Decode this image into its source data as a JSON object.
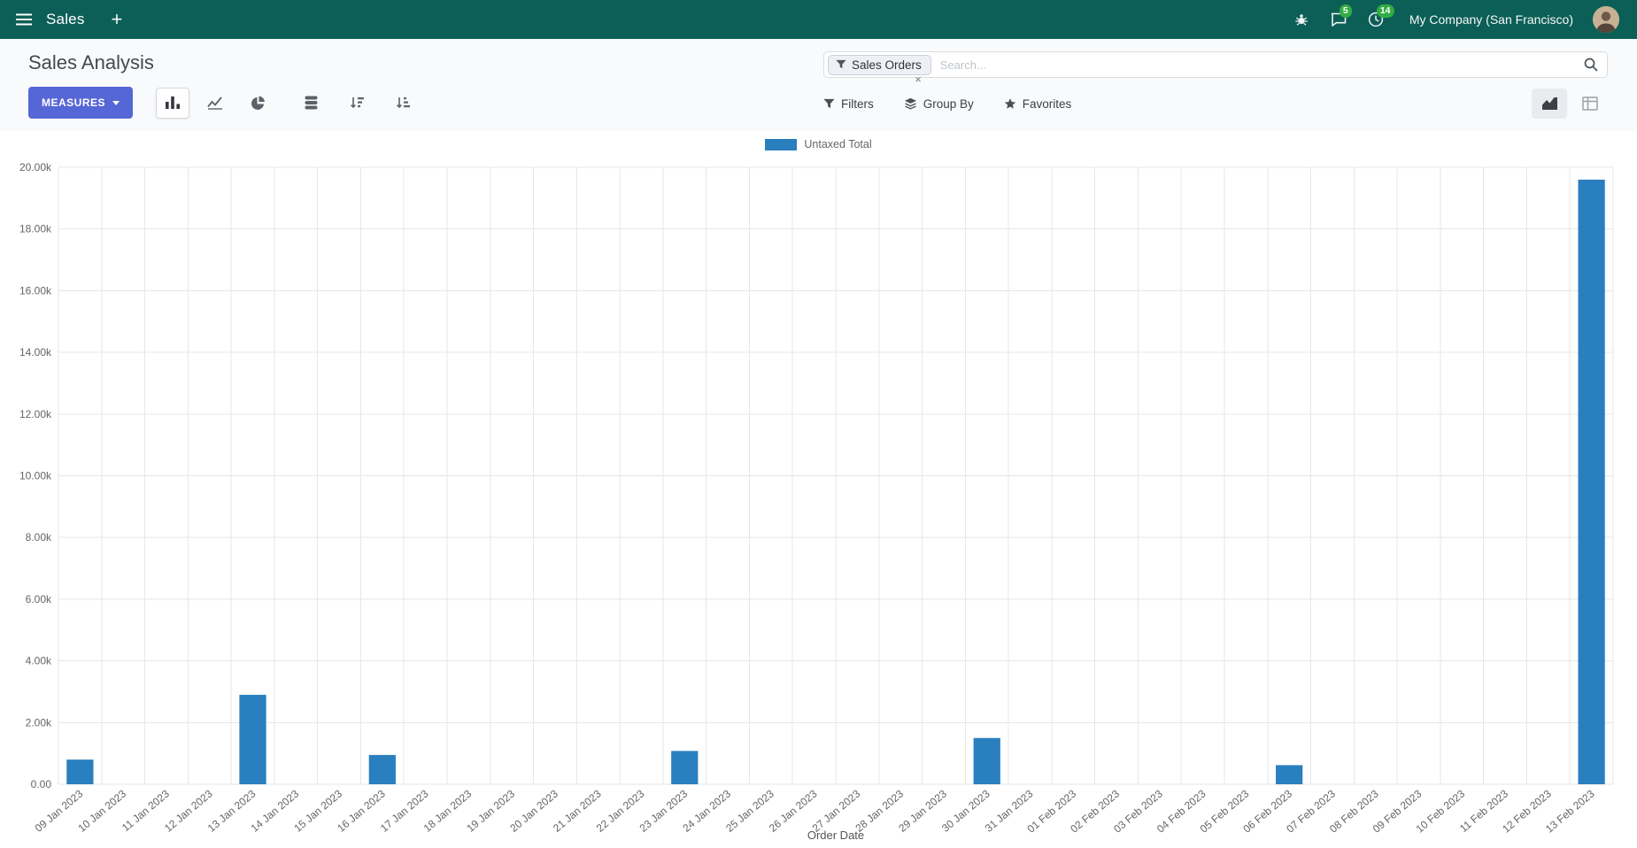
{
  "navbar": {
    "app_name": "Sales",
    "company_name": "My Company (San Francisco)",
    "messages_badge": "5",
    "activities_badge": "14",
    "plus_label": "+"
  },
  "control_panel": {
    "title": "Sales Analysis",
    "measures_label": "MEASURES",
    "filters_label": "Filters",
    "group_by_label": "Group By",
    "favorites_label": "Favorites",
    "search": {
      "facet_label": "Sales Orders",
      "placeholder": "Search...",
      "remove_facet": "×"
    }
  },
  "chart_data": {
    "type": "bar",
    "title": "",
    "xlabel": "Order Date",
    "ylabel": "",
    "ylim": [
      0,
      20000
    ],
    "y_tick_step": 2000,
    "grid": true,
    "legend_position": "top",
    "legend": [
      "Untaxed Total"
    ],
    "series_color": "#2a7fbf",
    "categories": [
      "09 Jan 2023",
      "10 Jan 2023",
      "11 Jan 2023",
      "12 Jan 2023",
      "13 Jan 2023",
      "14 Jan 2023",
      "15 Jan 2023",
      "16 Jan 2023",
      "17 Jan 2023",
      "18 Jan 2023",
      "19 Jan 2023",
      "20 Jan 2023",
      "21 Jan 2023",
      "22 Jan 2023",
      "23 Jan 2023",
      "24 Jan 2023",
      "25 Jan 2023",
      "26 Jan 2023",
      "27 Jan 2023",
      "28 Jan 2023",
      "29 Jan 2023",
      "30 Jan 2023",
      "31 Jan 2023",
      "01 Feb 2023",
      "02 Feb 2023",
      "03 Feb 2023",
      "04 Feb 2023",
      "05 Feb 2023",
      "06 Feb 2023",
      "07 Feb 2023",
      "08 Feb 2023",
      "09 Feb 2023",
      "10 Feb 2023",
      "11 Feb 2023",
      "12 Feb 2023",
      "13 Feb 2023"
    ],
    "values": [
      800,
      0,
      0,
      0,
      2900,
      0,
      0,
      950,
      0,
      0,
      0,
      0,
      0,
      0,
      1080,
      0,
      0,
      0,
      0,
      0,
      0,
      1500,
      0,
      0,
      0,
      0,
      0,
      0,
      620,
      0,
      0,
      0,
      0,
      0,
      0,
      19600
    ]
  },
  "colors": {
    "navbar_bg": "#0c5f56",
    "accent": "#5566d6",
    "bar": "#2a7fbf",
    "badge_green": "#32ad44"
  }
}
